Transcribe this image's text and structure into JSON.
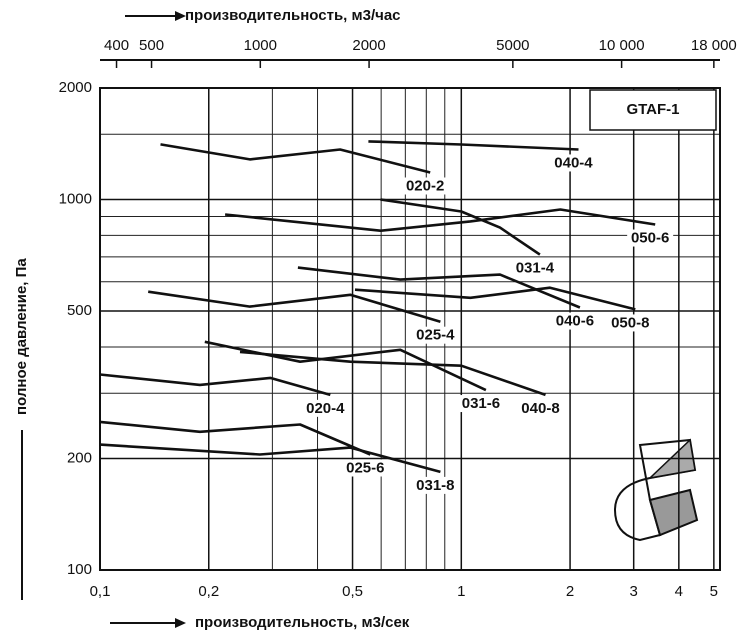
{
  "chart_data": {
    "type": "line",
    "title": "GTAF-1",
    "x_label": "производительность, м3/сек",
    "top_axis_label": "производительность, м3/час",
    "y_label": "полное давление, Па",
    "xscale": "log",
    "yscale": "log",
    "grid": true,
    "xlim": [
      0.1,
      5.2
    ],
    "ylim": [
      100,
      2000
    ],
    "xticks": [
      {
        "value": 0.1,
        "label": "0,1"
      },
      {
        "value": 0.2,
        "label": "0,2"
      },
      {
        "value": 0.5,
        "label": "0,5"
      },
      1,
      2,
      3,
      4,
      5
    ],
    "x_minor_ticks": [
      0.3,
      0.4,
      0.6,
      0.7,
      0.8,
      0.9
    ],
    "yticks": [
      100,
      200,
      500,
      1000,
      2000
    ],
    "y_minor_ticks": [
      300,
      400,
      600,
      700,
      800,
      900,
      1500
    ],
    "top_xlim": [
      360,
      18720
    ],
    "top_xticks": [
      400,
      500,
      1000,
      2000,
      5000,
      {
        "value": 10000,
        "label": "10 000"
      },
      {
        "value": 18000,
        "label": "18 000"
      }
    ],
    "series": [
      {
        "name": "020-2",
        "color": "#111111",
        "x": [
          0.147,
          0.26,
          0.462,
          0.82
        ],
        "values": [
          1409,
          1283,
          1365,
          1183
        ]
      },
      {
        "name": "040-4",
        "color": "#111111",
        "x": [
          0.553,
          1.0,
          2.11
        ],
        "values": [
          1435,
          1408,
          1365
        ]
      },
      {
        "name": "050-6",
        "color": "#111111",
        "x": [
          0.222,
          0.597,
          1.06,
          1.88,
          3.44
        ],
        "values": [
          911,
          824,
          873,
          940,
          856
        ]
      },
      {
        "name": "031-4",
        "color": "#111111",
        "x": [
          0.597,
          1.0,
          1.28,
          1.65
        ],
        "values": [
          1000,
          928,
          840,
          710
        ]
      },
      {
        "name": "025-4",
        "color": "#111111",
        "x": [
          0.136,
          0.26,
          0.493,
          0.875
        ],
        "values": [
          564,
          514,
          553,
          468
        ]
      },
      {
        "name": "040-6",
        "color": "#111111",
        "x": [
          0.353,
          0.678,
          1.28,
          2.13
        ],
        "values": [
          655,
          608,
          627,
          511
        ]
      },
      {
        "name": "050-8",
        "color": "#111111",
        "x": [
          0.508,
          1.06,
          1.76,
          3.03
        ],
        "values": [
          571,
          543,
          578,
          505
        ]
      },
      {
        "name": "020-4",
        "color": "#111111",
        "x": [
          0.1,
          0.189,
          0.296,
          0.434
        ],
        "values": [
          337,
          316,
          330,
          297
        ]
      },
      {
        "name": "031-6",
        "color": "#111111",
        "x": [
          0.195,
          0.358,
          0.678,
          1.17
        ],
        "values": [
          413,
          365,
          393,
          306
        ]
      },
      {
        "name": "040-8",
        "color": "#111111",
        "x": [
          0.244,
          0.493,
          1.0,
          1.71
        ],
        "values": [
          388,
          365,
          356,
          297
        ]
      },
      {
        "name": "025-6",
        "color": "#111111",
        "x": [
          0.1,
          0.189,
          0.358,
          0.56
        ],
        "values": [
          251,
          236,
          247,
          205
        ]
      },
      {
        "name": "031-8",
        "color": "#111111",
        "x": [
          0.1,
          0.277,
          0.493,
          0.875
        ],
        "values": [
          218,
          205,
          214,
          184
        ]
      }
    ]
  }
}
